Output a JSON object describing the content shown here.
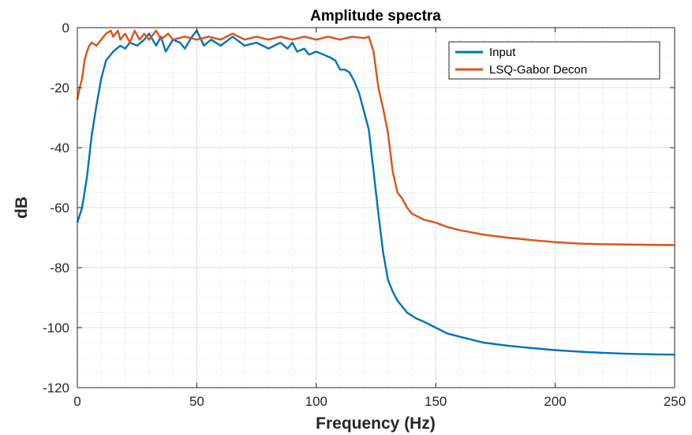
{
  "chart_data": {
    "type": "line",
    "title": "Amplitude spectra",
    "xlabel": "Frequency (Hz)",
    "ylabel": "dB",
    "xlim": [
      0,
      250
    ],
    "ylim": [
      -120,
      0
    ],
    "xticks": [
      0,
      50,
      100,
      150,
      200,
      250
    ],
    "yticks": [
      0,
      -20,
      -40,
      -60,
      -80,
      -100,
      -120
    ],
    "grid": true,
    "minor_grid": true,
    "legend_position": "top-right",
    "series": [
      {
        "name": "Input",
        "color": "#0072BD",
        "points": [
          [
            0,
            -65
          ],
          [
            2,
            -60
          ],
          [
            4,
            -50
          ],
          [
            6,
            -36
          ],
          [
            8,
            -26
          ],
          [
            10,
            -17
          ],
          [
            12,
            -11
          ],
          [
            15,
            -8
          ],
          [
            18,
            -6
          ],
          [
            20,
            -7
          ],
          [
            22,
            -5
          ],
          [
            25,
            -6
          ],
          [
            28,
            -4
          ],
          [
            30,
            -2
          ],
          [
            33,
            -6
          ],
          [
            35,
            -3
          ],
          [
            37,
            -8
          ],
          [
            40,
            -4
          ],
          [
            43,
            -5
          ],
          [
            45,
            -7
          ],
          [
            48,
            -3
          ],
          [
            50,
            -1
          ],
          [
            53,
            -6
          ],
          [
            56,
            -4
          ],
          [
            60,
            -6
          ],
          [
            65,
            -3
          ],
          [
            70,
            -6
          ],
          [
            75,
            -5
          ],
          [
            80,
            -7
          ],
          [
            85,
            -5
          ],
          [
            88,
            -7
          ],
          [
            90,
            -5
          ],
          [
            92,
            -8
          ],
          [
            95,
            -7
          ],
          [
            97,
            -9
          ],
          [
            100,
            -8
          ],
          [
            103,
            -9
          ],
          [
            106,
            -10
          ],
          [
            108,
            -11
          ],
          [
            110,
            -14
          ],
          [
            112,
            -14
          ],
          [
            114,
            -15
          ],
          [
            116,
            -18
          ],
          [
            118,
            -22
          ],
          [
            120,
            -28
          ],
          [
            122,
            -34
          ],
          [
            124,
            -48
          ],
          [
            126,
            -62
          ],
          [
            128,
            -75
          ],
          [
            130,
            -84
          ],
          [
            132,
            -88
          ],
          [
            134,
            -91
          ],
          [
            136,
            -93
          ],
          [
            138,
            -95
          ],
          [
            140,
            -96
          ],
          [
            142,
            -97
          ],
          [
            145,
            -98
          ],
          [
            150,
            -100
          ],
          [
            155,
            -102
          ],
          [
            160,
            -103
          ],
          [
            170,
            -105
          ],
          [
            180,
            -106
          ],
          [
            190,
            -106.8
          ],
          [
            200,
            -107.5
          ],
          [
            210,
            -108
          ],
          [
            220,
            -108.4
          ],
          [
            230,
            -108.7
          ],
          [
            240,
            -108.9
          ],
          [
            250,
            -109
          ]
        ]
      },
      {
        "name": "LSQ-Gabor Decon",
        "color": "#D95319",
        "points": [
          [
            0,
            -24
          ],
          [
            1,
            -20
          ],
          [
            2,
            -17
          ],
          [
            3,
            -11
          ],
          [
            4,
            -8
          ],
          [
            5,
            -6
          ],
          [
            6,
            -5
          ],
          [
            8,
            -6
          ],
          [
            10,
            -4
          ],
          [
            12,
            -2
          ],
          [
            14,
            -1
          ],
          [
            15,
            -3
          ],
          [
            17,
            -1
          ],
          [
            18,
            -4
          ],
          [
            20,
            -2
          ],
          [
            22,
            -5
          ],
          [
            24,
            -1
          ],
          [
            26,
            -4
          ],
          [
            28,
            -2
          ],
          [
            30,
            -4
          ],
          [
            33,
            -1
          ],
          [
            35,
            -4
          ],
          [
            38,
            -2
          ],
          [
            40,
            -4
          ],
          [
            45,
            -3
          ],
          [
            50,
            -4
          ],
          [
            55,
            -3
          ],
          [
            60,
            -4
          ],
          [
            65,
            -2
          ],
          [
            70,
            -4
          ],
          [
            75,
            -3
          ],
          [
            80,
            -4
          ],
          [
            85,
            -3
          ],
          [
            90,
            -4
          ],
          [
            95,
            -3
          ],
          [
            100,
            -4
          ],
          [
            105,
            -3
          ],
          [
            110,
            -4
          ],
          [
            115,
            -3
          ],
          [
            120,
            -3.5
          ],
          [
            122,
            -3
          ],
          [
            124,
            -8
          ],
          [
            126,
            -20
          ],
          [
            128,
            -27
          ],
          [
            130,
            -35
          ],
          [
            132,
            -48
          ],
          [
            134,
            -55
          ],
          [
            136,
            -57
          ],
          [
            138,
            -60
          ],
          [
            140,
            -62
          ],
          [
            145,
            -64
          ],
          [
            150,
            -65
          ],
          [
            155,
            -66.5
          ],
          [
            160,
            -67.5
          ],
          [
            170,
            -69
          ],
          [
            180,
            -70
          ],
          [
            190,
            -70.8
          ],
          [
            200,
            -71.5
          ],
          [
            210,
            -72
          ],
          [
            220,
            -72.2
          ],
          [
            230,
            -72.3
          ],
          [
            240,
            -72.4
          ],
          [
            250,
            -72.5
          ]
        ]
      }
    ]
  }
}
